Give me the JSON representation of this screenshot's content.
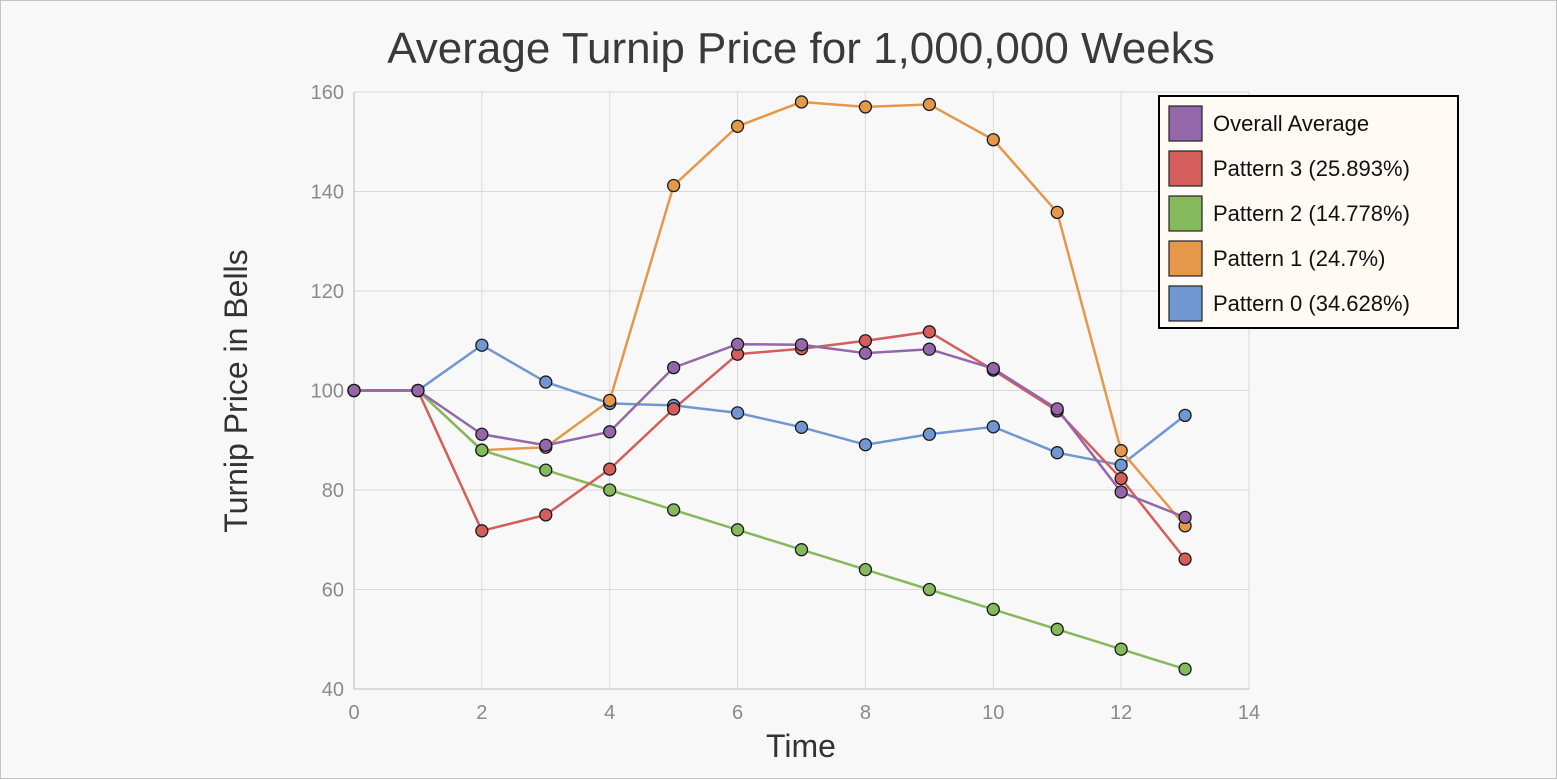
{
  "chart_data": {
    "type": "line",
    "title": "Average Turnip Price for 1,000,000 Weeks",
    "xlabel": "Time",
    "ylabel": "Turnip Price in Bells",
    "xlim": [
      0,
      14
    ],
    "ylim": [
      40,
      160
    ],
    "x_ticks": [
      0,
      2,
      4,
      6,
      8,
      10,
      12,
      14
    ],
    "y_ticks": [
      40,
      60,
      80,
      100,
      120,
      140,
      160
    ],
    "grid": true,
    "legend_position": "top-right",
    "x": [
      0,
      1,
      2,
      3,
      4,
      5,
      6,
      7,
      8,
      9,
      10,
      11,
      12,
      13
    ],
    "series": [
      {
        "name": "Pattern 0 (34.628%)",
        "color": "#7097d1",
        "values": [
          100,
          100,
          109.1,
          101.7,
          97.4,
          97.0,
          95.5,
          92.6,
          89.1,
          91.2,
          92.7,
          87.5,
          85.0,
          95.0
        ]
      },
      {
        "name": "Pattern 1 (24.7%)",
        "color": "#e5984a",
        "values": [
          100,
          100,
          88.0,
          88.6,
          98.0,
          141.2,
          153.1,
          158.0,
          157.0,
          157.5,
          150.4,
          135.8,
          87.9,
          72.8
        ]
      },
      {
        "name": "Pattern 2 (14.778%)",
        "color": "#85b95c",
        "values": [
          100,
          100,
          88.0,
          84.0,
          80.0,
          76.0,
          72.0,
          68.0,
          64.0,
          60.0,
          56.0,
          52.0,
          48.0,
          44.0
        ]
      },
      {
        "name": "Pattern 3 (25.893%)",
        "color": "#d45e5c",
        "values": [
          100,
          100,
          71.8,
          75.0,
          84.2,
          96.3,
          107.3,
          108.4,
          110.0,
          111.8,
          104.1,
          95.9,
          82.3,
          66.1
        ]
      },
      {
        "name": "Overall Average",
        "color": "#9367aa",
        "values": [
          100,
          100,
          91.2,
          89.0,
          91.7,
          104.6,
          109.3,
          109.2,
          107.5,
          108.3,
          104.4,
          96.3,
          79.6,
          74.5
        ]
      }
    ],
    "legend_order": [
      4,
      3,
      2,
      1,
      0
    ]
  }
}
